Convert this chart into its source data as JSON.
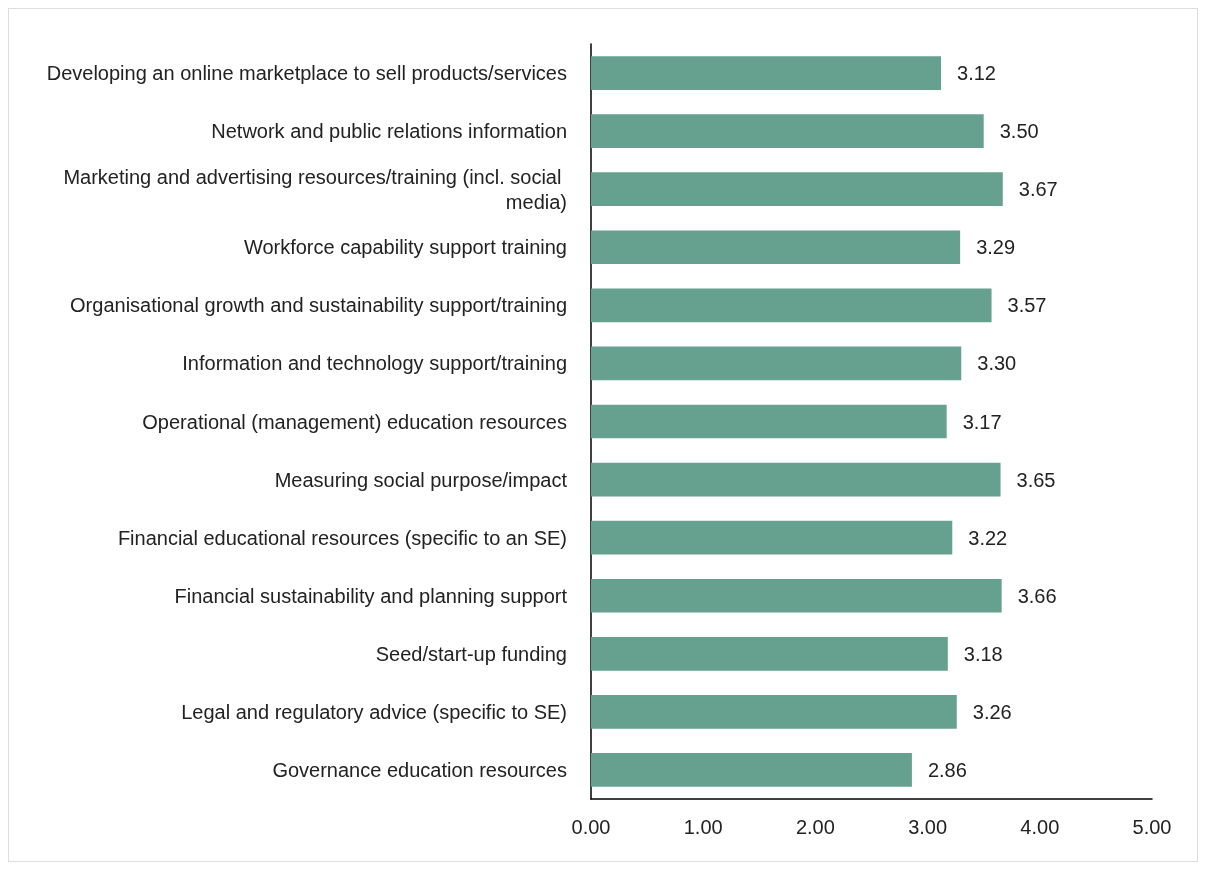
{
  "chart_data": {
    "type": "bar",
    "orientation": "horizontal",
    "categories": [
      "Developing an online marketplace to sell products/services",
      "Network and public relations information",
      "Marketing and advertising resources/training (incl. social media)",
      "Workforce capability support training",
      "Organisational growth and sustainability support/training",
      "Information and technology support/training",
      "Operational (management) education resources",
      "Measuring social purpose/impact",
      "Financial educational resources (specific to an SE)",
      "Financial sustainability and planning support",
      "Seed/start-up funding",
      "Legal and regulatory advice (specific to SE)",
      "Governance education resources"
    ],
    "values": [
      3.12,
      3.5,
      3.67,
      3.29,
      3.57,
      3.3,
      3.17,
      3.65,
      3.22,
      3.66,
      3.18,
      3.26,
      2.86
    ],
    "value_labels": [
      "3.12",
      "3.50",
      "3.67",
      "3.29",
      "3.57",
      "3.30",
      "3.17",
      "3.65",
      "3.22",
      "3.66",
      "3.18",
      "3.26",
      "2.86"
    ],
    "color": "#66a08e",
    "xlim": [
      0,
      5
    ],
    "xticks": [
      {
        "value": 0,
        "label": "0.00"
      },
      {
        "value": 1,
        "label": "1.00"
      },
      {
        "value": 2,
        "label": "2.00"
      },
      {
        "value": 3,
        "label": "3.00"
      },
      {
        "value": 4,
        "label": "4.00"
      },
      {
        "value": 5,
        "label": "5.00"
      }
    ],
    "grid": false
  }
}
